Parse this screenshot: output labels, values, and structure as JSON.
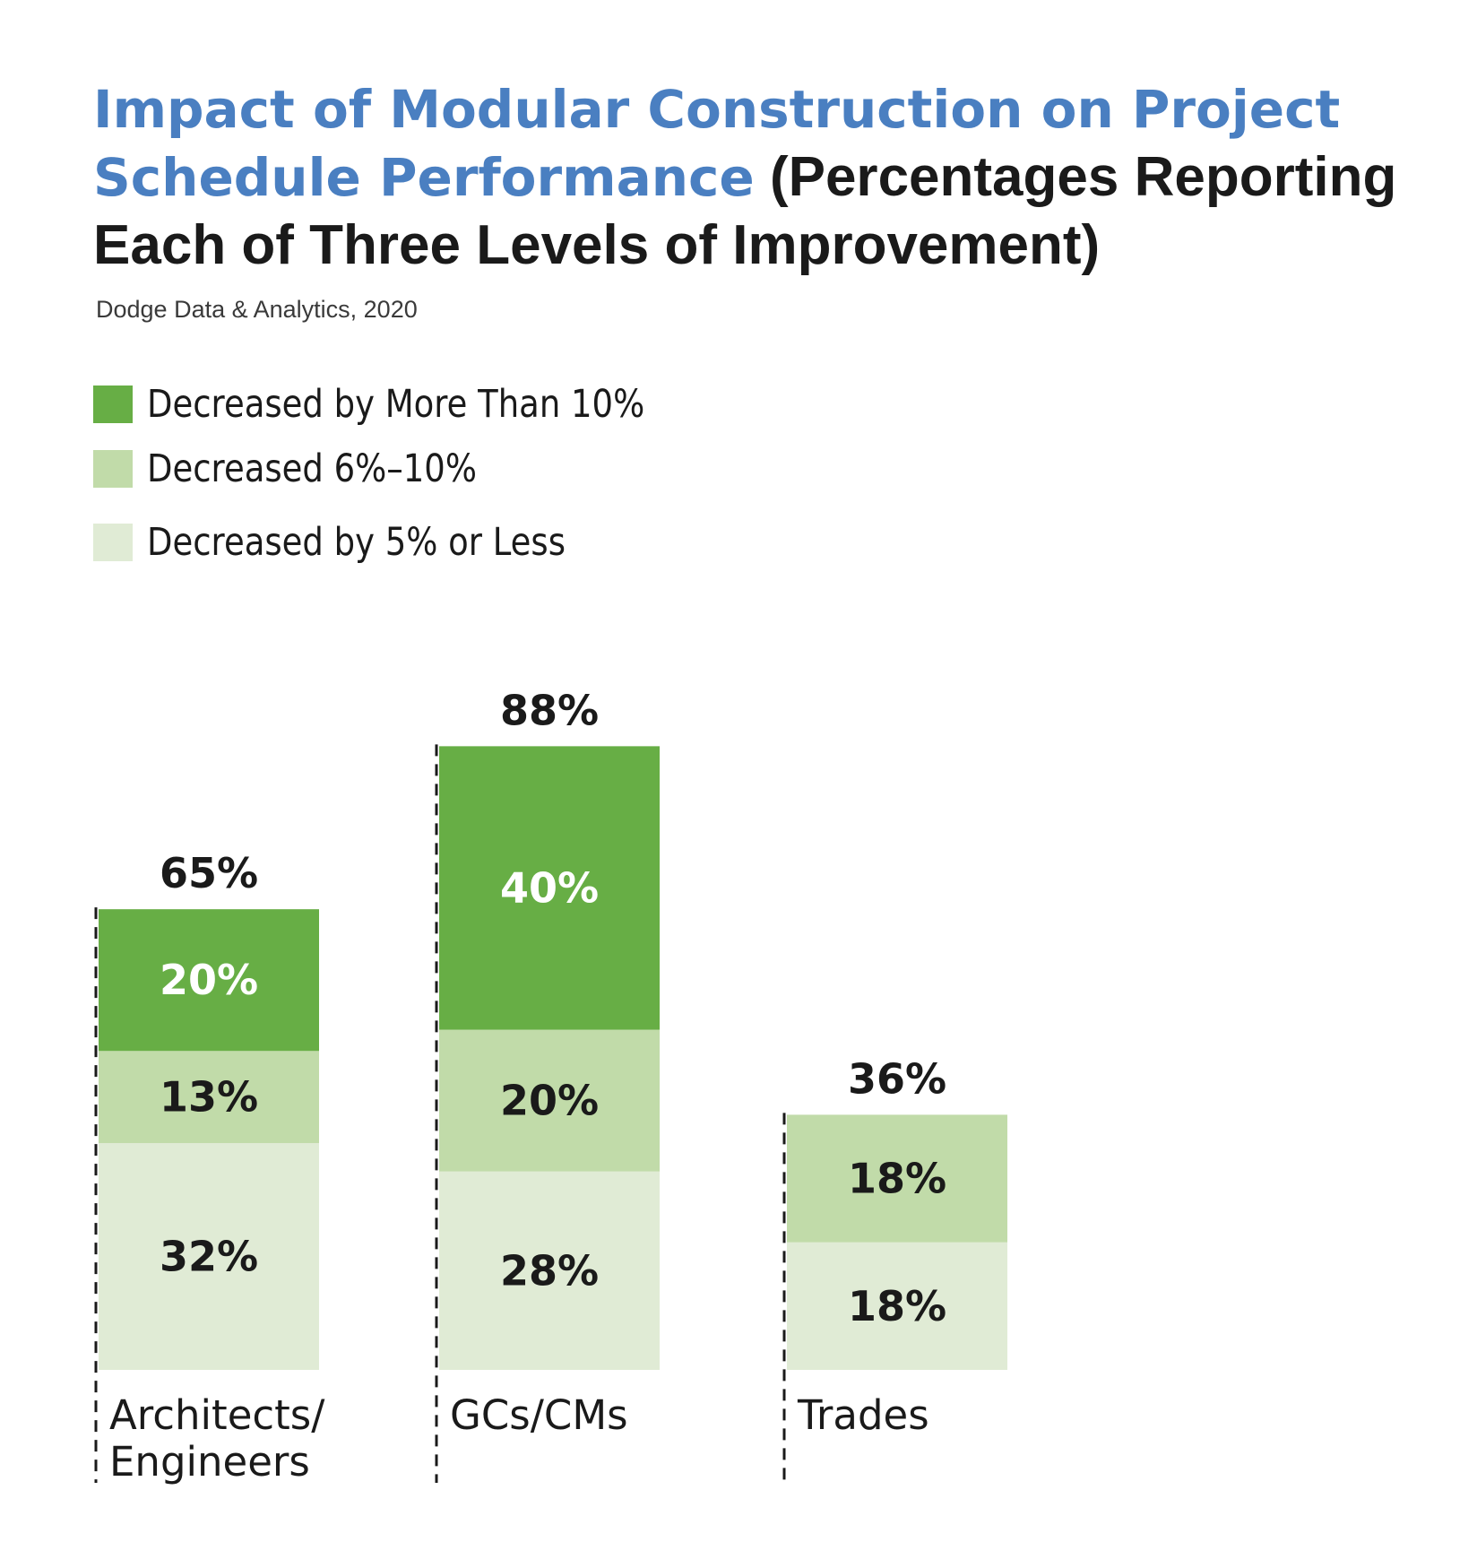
{
  "chart_data": {
    "type": "bar",
    "stacked": true,
    "title": "Impact of Modular Construction on Project Schedule Performance",
    "title_suffix": "(Percentages Reporting Each of Three Levels of Improvement)",
    "subtitle": "Dodge Data & Analytics, 2020",
    "categories": [
      "Architects/ Engineers",
      "GCs/CMs",
      "Trades"
    ],
    "category_lines": [
      [
        "Architects/",
        "Engineers"
      ],
      [
        "GCs/CMs"
      ],
      [
        "Trades"
      ]
    ],
    "series": [
      {
        "name": "Decreased by 5% or Less",
        "values": [
          32,
          28,
          18
        ],
        "color": "#e0ebd5",
        "label_color": "#1a1a1a"
      },
      {
        "name": "Decreased 6%–10%",
        "values": [
          13,
          20,
          18
        ],
        "color": "#c1dba9",
        "label_color": "#1a1a1a"
      },
      {
        "name": "Decreased by More Than 10%",
        "values": [
          20,
          40,
          0
        ],
        "color": "#67ae45",
        "label_color": "#ffffff"
      }
    ],
    "totals": [
      "65%",
      "88%",
      "36%"
    ],
    "legend_order": [
      2,
      1,
      0
    ],
    "ylim": [
      0,
      88
    ],
    "grid": false,
    "legend_position": "top-left"
  }
}
